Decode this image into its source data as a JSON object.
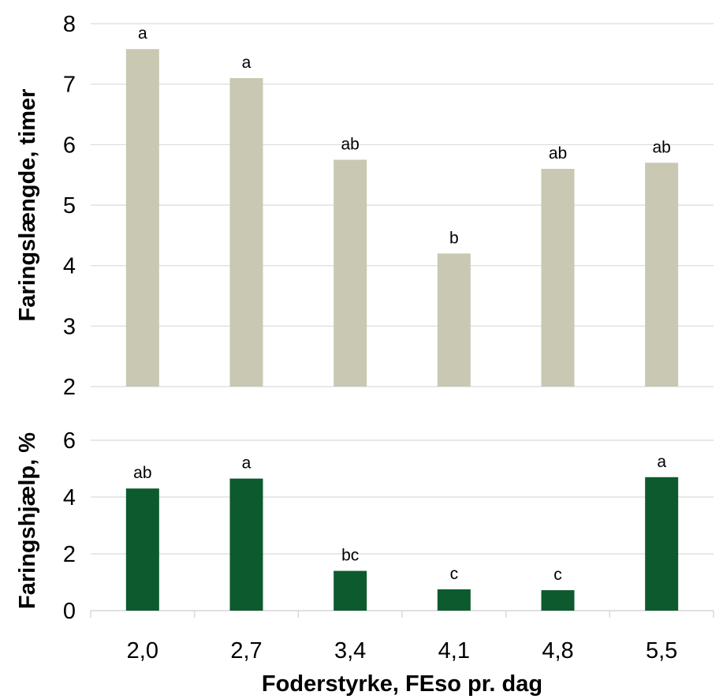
{
  "chart_data": {
    "type": "bar",
    "xlabel": "Foderstyrke, FEso pr. dag",
    "categories": [
      "2,0",
      "2,7",
      "3,4",
      "4,1",
      "4,8",
      "5,5"
    ],
    "panels": [
      {
        "ylabel": "Faringslængde, timer",
        "ylim": [
          2,
          8
        ],
        "yticks": [
          2,
          3,
          4,
          5,
          6,
          7,
          8
        ],
        "grid": true,
        "color": "#c8c8b3",
        "values": [
          7.58,
          7.1,
          5.75,
          4.2,
          5.6,
          5.7
        ],
        "labels": [
          "a",
          "a",
          "ab",
          "b",
          "ab",
          "ab"
        ]
      },
      {
        "ylabel": "Faringshjælp, %",
        "ylim": [
          0,
          6
        ],
        "yticks": [
          0,
          2,
          4,
          6
        ],
        "grid": true,
        "color": "#0d5a2e",
        "values": [
          4.3,
          4.65,
          1.4,
          0.75,
          0.72,
          4.7
        ],
        "labels": [
          "ab",
          "a",
          "bc",
          "c",
          "c",
          "a"
        ]
      }
    ]
  }
}
